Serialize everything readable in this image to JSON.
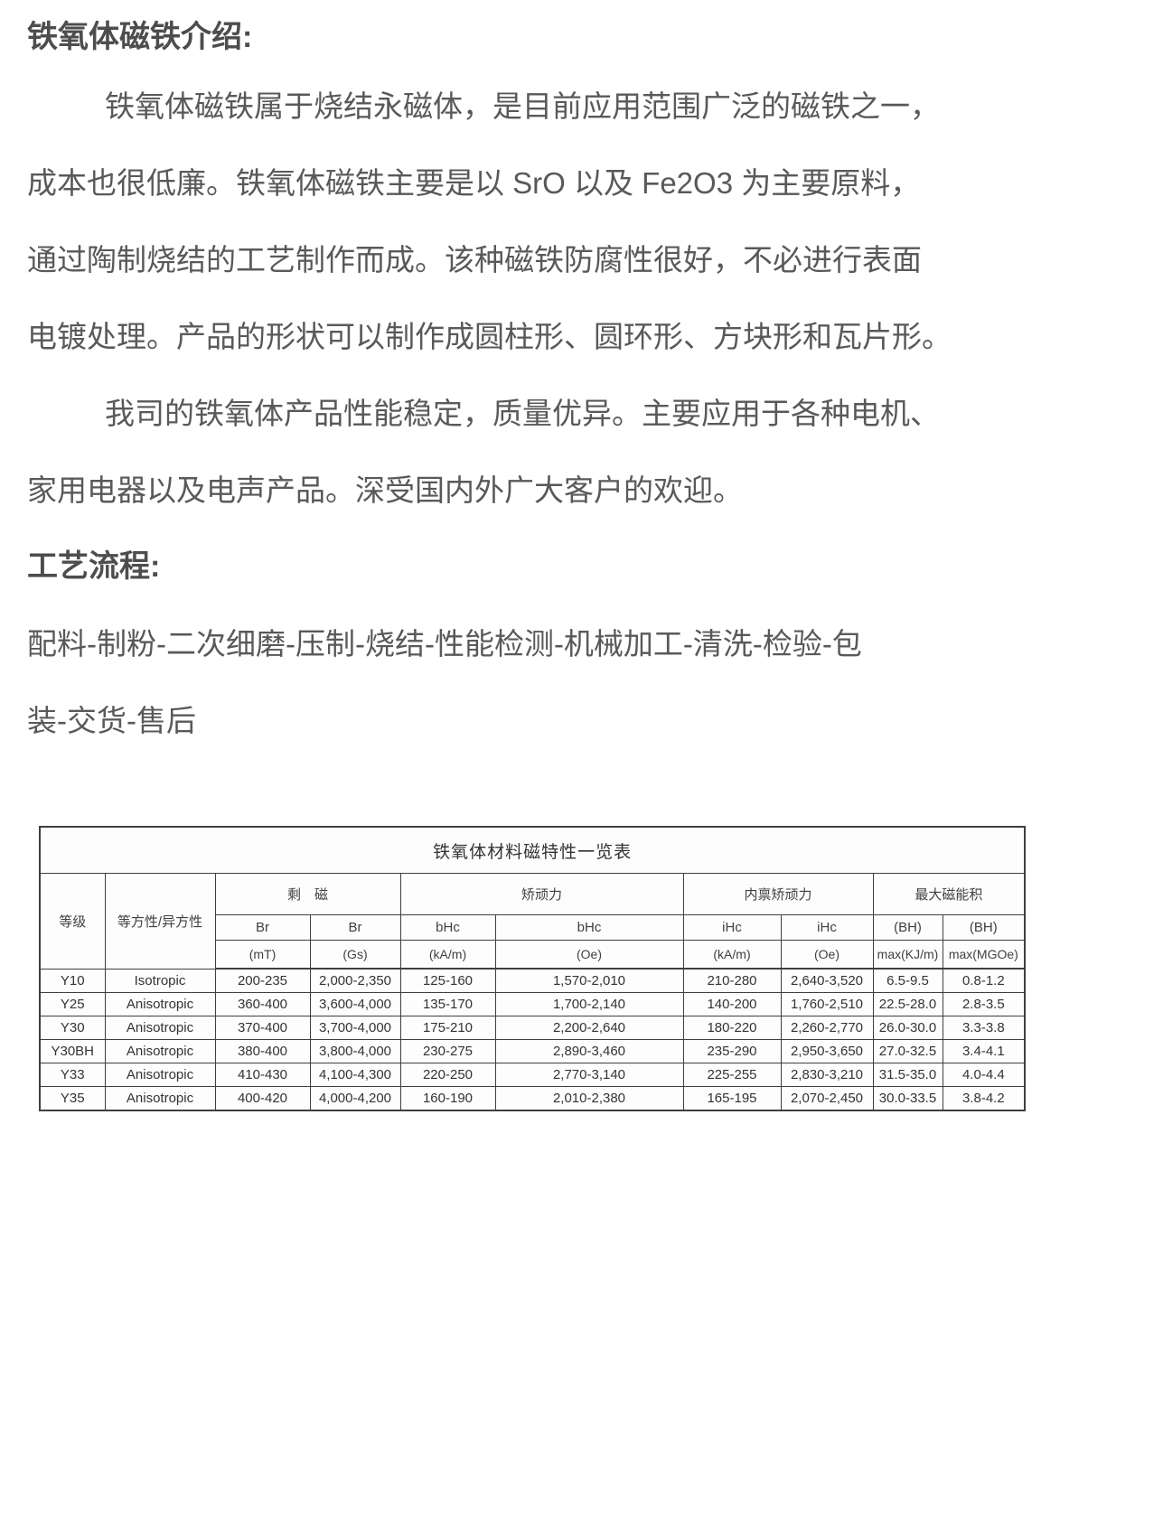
{
  "page": {
    "background": "#ffffff",
    "body_text_color": "#595959",
    "heading_text_color": "#4d4d4d",
    "table_border_color": "#3f3f3f"
  },
  "intro": {
    "heading": "铁氧体磁铁介绍:",
    "lines": [
      {
        "text": "铁氧体磁铁属于烧结永磁体，是目前应用范围广泛的磁铁之一，",
        "indent": true
      },
      {
        "text": "成本也很低廉。铁氧体磁铁主要是以 SrO 以及 Fe2O3 为主要原料，",
        "indent": false
      },
      {
        "text": "通过陶制烧结的工艺制作而成。该种磁铁防腐性很好，不必进行表面",
        "indent": false
      },
      {
        "text": "电镀处理。产品的形状可以制作成圆柱形、圆环形、方块形和瓦片形。",
        "indent": false
      },
      {
        "text": "我司的铁氧体产品性能稳定，质量优异。主要应用于各种电机、",
        "indent": true
      },
      {
        "text": "家用电器以及电声产品。深受国内外广大客户的欢迎。",
        "indent": false
      }
    ]
  },
  "process": {
    "heading": "工艺流程:",
    "lines": [
      {
        "text": "配料-制粉-二次细磨-压制-烧结-性能检测-机械加工-清洗-检验-包",
        "indent": false
      },
      {
        "text": "装-交货-售后",
        "indent": false
      }
    ]
  },
  "table": {
    "title": "铁氧体材料磁特性一览表",
    "col1_header": "等级",
    "col2_header": "等方性/异方性",
    "groups": [
      {
        "label": "剩　磁",
        "sub": [
          "Br",
          "Br"
        ],
        "units": [
          "(mT)",
          "(Gs)"
        ]
      },
      {
        "label": "矫顽力",
        "sub": [
          "bHc",
          "bHc"
        ],
        "units": [
          "(kA/m)",
          "(Oe)"
        ]
      },
      {
        "label": "内禀矫顽力",
        "sub": [
          "iHc",
          "iHc"
        ],
        "units": [
          "(kA/m)",
          "(Oe)"
        ]
      },
      {
        "label": "最大磁能积",
        "sub": [
          "(BH)",
          "(BH)"
        ],
        "units": [
          "max(KJ/m)",
          "max(MGOe)"
        ]
      }
    ],
    "rows": [
      [
        "Y10",
        "Isotropic",
        "200-235",
        "2,000-2,350",
        "125-160",
        "1,570-2,010",
        "210-280",
        "2,640-3,520",
        "6.5-9.5",
        "0.8-1.2"
      ],
      [
        "Y25",
        "Anisotropic",
        "360-400",
        "3,600-4,000",
        "135-170",
        "1,700-2,140",
        "140-200",
        "1,760-2,510",
        "22.5-28.0",
        "2.8-3.5"
      ],
      [
        "Y30",
        "Anisotropic",
        "370-400",
        "3,700-4,000",
        "175-210",
        "2,200-2,640",
        "180-220",
        "2,260-2,770",
        "26.0-30.0",
        "3.3-3.8"
      ],
      [
        "Y30BH",
        "Anisotropic",
        "380-400",
        "3,800-4,000",
        "230-275",
        "2,890-3,460",
        "235-290",
        "2,950-3,650",
        "27.0-32.5",
        "3.4-4.1"
      ],
      [
        "Y33",
        "Anisotropic",
        "410-430",
        "4,100-4,300",
        "220-250",
        "2,770-3,140",
        "225-255",
        "2,830-3,210",
        "31.5-35.0",
        "4.0-4.4"
      ],
      [
        "Y35",
        "Anisotropic",
        "400-420",
        "4,000-4,200",
        "160-190",
        "2,010-2,380",
        "165-195",
        "2,070-2,450",
        "30.0-33.5",
        "3.8-4.2"
      ]
    ]
  }
}
